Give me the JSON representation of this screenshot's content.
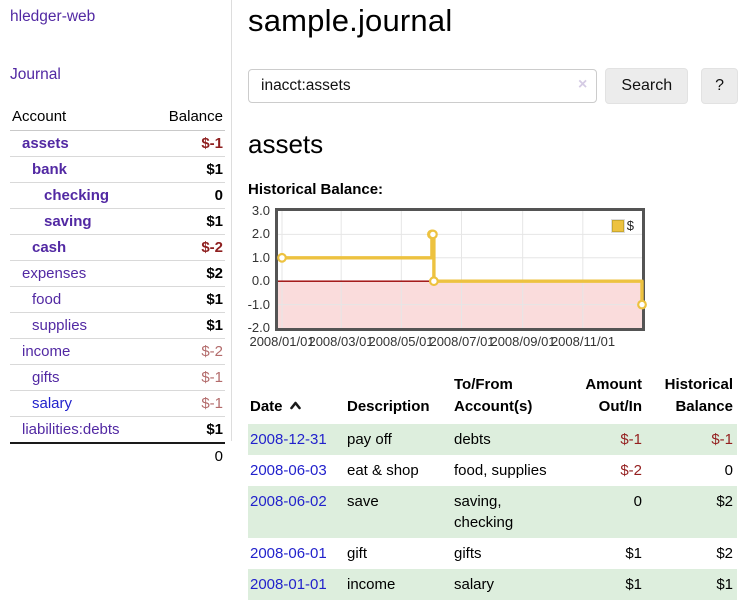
{
  "app": {
    "brand": "hledger-web",
    "nav": {
      "journal": "Journal"
    }
  },
  "colors": {
    "accent_purple": "#5229a3",
    "link_blue": "#2222cc",
    "negative_strong": "#8e1f1f",
    "negative_muted": "#b36b6b",
    "table_negative": "#941f1f",
    "stripe_green": "#ddeedd",
    "series_yellow": "#edc240",
    "negative_region_pink": "#fadcdc",
    "zero_line_red": "#990000"
  },
  "sidebar": {
    "header": {
      "account": "Account",
      "balance": "Balance"
    },
    "accounts": [
      {
        "name": "assets",
        "balance": "$-1"
      },
      {
        "name": "bank",
        "balance": "$1"
      },
      {
        "name": "checking",
        "balance": "0"
      },
      {
        "name": "saving",
        "balance": "$1"
      },
      {
        "name": "cash",
        "balance": "$-2"
      },
      {
        "name": "expenses",
        "balance": "$2"
      },
      {
        "name": "food",
        "balance": "$1"
      },
      {
        "name": "supplies",
        "balance": "$1"
      },
      {
        "name": "income",
        "balance": "$-2"
      },
      {
        "name": "gifts",
        "balance": "$-1"
      },
      {
        "name": "salary",
        "balance": "$-1"
      },
      {
        "name": "liabilities:debts",
        "balance": "$1"
      }
    ],
    "total": "0"
  },
  "main": {
    "title": "sample.journal",
    "search": {
      "value": "inacct:assets",
      "clear_icon": "×",
      "button": "Search",
      "help_button": "?"
    },
    "account_heading": "assets",
    "chart_heading": "Historical Balance:"
  },
  "chart_data": {
    "type": "line",
    "title": "Historical Balance:",
    "step": true,
    "series": [
      {
        "name": "$",
        "color": "#edc240",
        "points": [
          {
            "x": "2008-01-01",
            "y": 1
          },
          {
            "x": "2008-06-01",
            "y": 2
          },
          {
            "x": "2008-06-02",
            "y": 2
          },
          {
            "x": "2008-06-03",
            "y": 0
          },
          {
            "x": "2008-12-31",
            "y": -1
          }
        ]
      }
    ],
    "xrange": [
      "2008-01-01",
      "2008-12-31"
    ],
    "ylim": [
      -2,
      3
    ],
    "yticks": [
      "3.0",
      "2.0",
      "1.0",
      "0.0",
      "-1.0",
      "-2.0"
    ],
    "xticks": [
      "2008/01/01",
      "2008/03/01",
      "2008/05/01",
      "2008/07/01",
      "2008/09/01",
      "2008/11/01"
    ],
    "legend": {
      "label": "$",
      "position": "top-right"
    },
    "grid": true,
    "negative_region_shaded": true
  },
  "register": {
    "headers": {
      "date": "Date",
      "description": "Description",
      "accounts": "To/From Account(s)",
      "amount": "Amount Out/In",
      "balance": "Historical Balance"
    },
    "rows": [
      {
        "date": "2008-12-31",
        "description": "pay off",
        "accounts": "debts",
        "amount": "$-1",
        "balance": "$-1"
      },
      {
        "date": "2008-06-03",
        "description": "eat & shop",
        "accounts": "food, supplies",
        "amount": "$-2",
        "balance": "0"
      },
      {
        "date": "2008-06-02",
        "description": "save",
        "accounts": "saving, checking",
        "amount": "0",
        "balance": "$2"
      },
      {
        "date": "2008-06-01",
        "description": "gift",
        "accounts": "gifts",
        "amount": "$1",
        "balance": "$2"
      },
      {
        "date": "2008-01-01",
        "description": "income",
        "accounts": "salary",
        "amount": "$1",
        "balance": "$1"
      }
    ]
  }
}
